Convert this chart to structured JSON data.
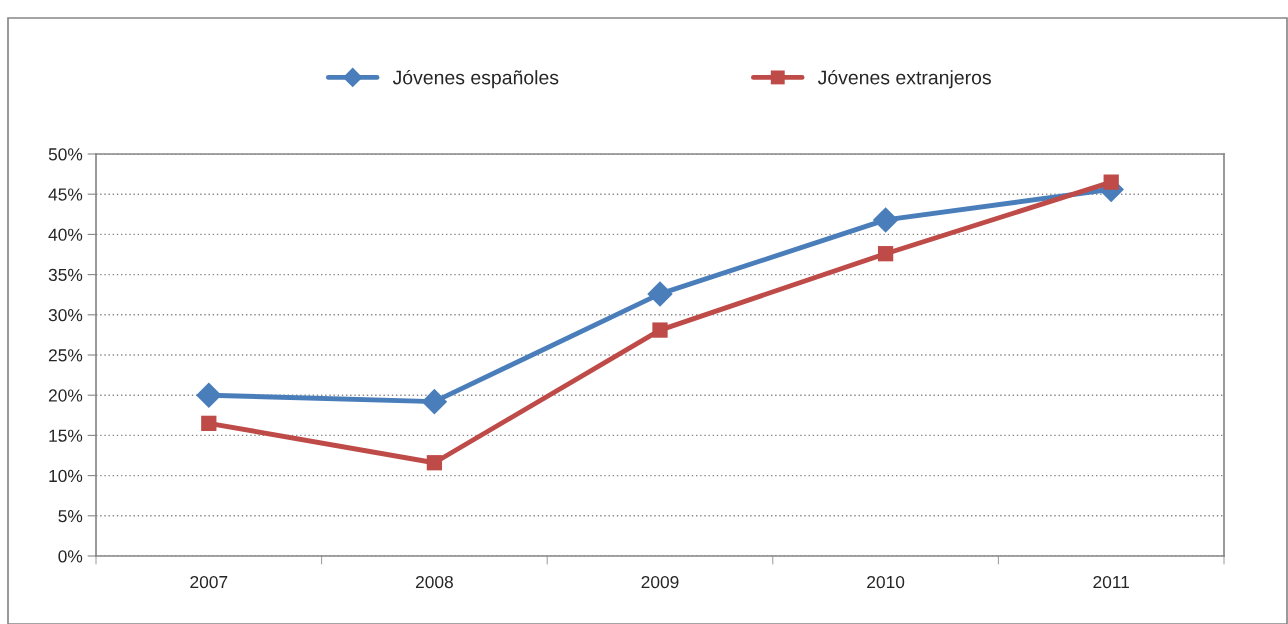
{
  "chart_data": {
    "type": "line",
    "categories": [
      "2007",
      "2008",
      "2009",
      "2010",
      "2011"
    ],
    "series": [
      {
        "name": "Jóvenes españoles",
        "color": "#4a7ebb",
        "marker": "diamond",
        "values": [
          20.0,
          19.2,
          32.6,
          41.8,
          45.6
        ]
      },
      {
        "name": "Jóvenes extranjeros",
        "color": "#be4b48",
        "marker": "square",
        "values": [
          16.5,
          11.6,
          28.1,
          37.6,
          46.5
        ]
      }
    ],
    "ylim": [
      0,
      50
    ],
    "yticks": [
      {
        "value": 0,
        "label": "0%"
      },
      {
        "value": 5,
        "label": "5%"
      },
      {
        "value": 10,
        "label": "10%"
      },
      {
        "value": 15,
        "label": "15%"
      },
      {
        "value": 20,
        "label": "20%"
      },
      {
        "value": 25,
        "label": "25%"
      },
      {
        "value": 30,
        "label": "30%"
      },
      {
        "value": 35,
        "label": "35%"
      },
      {
        "value": 40,
        "label": "40%"
      },
      {
        "value": 45,
        "label": "45%"
      },
      {
        "value": 50,
        "label": "50%"
      }
    ],
    "grid": "y",
    "legend": "top",
    "line_style": "solid"
  }
}
